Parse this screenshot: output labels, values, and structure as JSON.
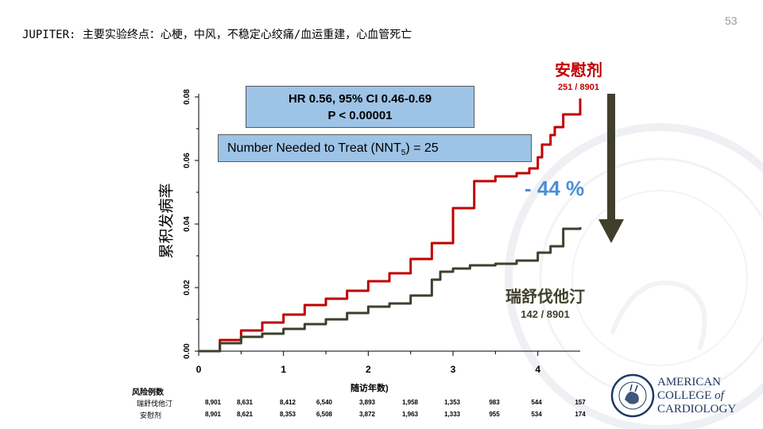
{
  "slide": {
    "title": "JUPITER:  主要实验终点：心梗，中风，不稳定心绞痛/血运重建，心血管死亡",
    "slide_number": "53"
  },
  "boxes": {
    "hr_line1": "HR 0.56, 95% CI 0.46-0.69",
    "hr_line2": "P < 0.00001",
    "nnt_prefix": "Number Needed to Treat (NNT",
    "nnt_sub": "5",
    "nnt_suffix": ") = 25"
  },
  "annotations": {
    "placebo_label": "安慰剂",
    "placebo_count": "251 / 8901",
    "statin_label": "瑞舒伐他汀",
    "statin_count": "142 / 8901",
    "reduction": "- 44 %"
  },
  "risk_table": {
    "title": "风险例数",
    "rows": [
      {
        "label": "瑞舒伐他汀",
        "values": [
          "8,901",
          "8,631",
          "8,412",
          "6,540",
          "3,893",
          "1,958",
          "1,353",
          "983",
          "544",
          "157"
        ]
      },
      {
        "label": "安慰剂",
        "values": [
          "8,901",
          "8,621",
          "8,353",
          "6,508",
          "3,872",
          "1,963",
          "1,333",
          "955",
          "534",
          "174"
        ]
      }
    ]
  },
  "logo": {
    "line1": "AMERICAN",
    "line2": "COLLEGE",
    "line2b": "of",
    "line3": "CARDIOLOGY",
    "seal_text": "AMERICAN COLLEGE OF CARDIOLOGY"
  },
  "colors": {
    "placebo": "#c00000",
    "statin": "#3f3f2c",
    "box_fill": "#9dc3e6",
    "reduction": "#4a8fd6",
    "arrow": "#3f3f2c"
  },
  "chart_data": {
    "type": "line",
    "title": "",
    "xlabel": "随访年数)",
    "ylabel": "累积发病率",
    "xlim": [
      0,
      4.5
    ],
    "ylim": [
      0,
      0.08
    ],
    "xticks": [
      "0",
      "1",
      "2",
      "3",
      "4"
    ],
    "yticks": [
      "0.00",
      "0.02",
      "0.04",
      "0.06",
      "0.08"
    ],
    "series": [
      {
        "name": "安慰剂",
        "color": "#c00000",
        "x": [
          0,
          0.25,
          0.5,
          0.75,
          1.0,
          1.25,
          1.5,
          1.75,
          2.0,
          2.25,
          2.5,
          2.75,
          3.0,
          3.25,
          3.5,
          3.75,
          3.9,
          4.0,
          4.05,
          4.15,
          4.2,
          4.3,
          4.45,
          4.5
        ],
        "y": [
          0,
          0.0035,
          0.0065,
          0.009,
          0.0115,
          0.0145,
          0.0165,
          0.019,
          0.022,
          0.0245,
          0.029,
          0.034,
          0.045,
          0.0535,
          0.055,
          0.056,
          0.0575,
          0.061,
          0.065,
          0.068,
          0.0705,
          0.0745,
          0.0745,
          0.0795
        ]
      },
      {
        "name": "瑞舒伐他汀",
        "color": "#3f3f2c",
        "x": [
          0,
          0.25,
          0.5,
          0.75,
          1.0,
          1.25,
          1.5,
          1.75,
          2.0,
          2.25,
          2.5,
          2.75,
          2.85,
          3.0,
          3.2,
          3.5,
          3.75,
          4.0,
          4.15,
          4.3,
          4.5
        ],
        "y": [
          0,
          0.0025,
          0.0045,
          0.0055,
          0.007,
          0.0085,
          0.01,
          0.012,
          0.014,
          0.015,
          0.0175,
          0.0225,
          0.025,
          0.026,
          0.027,
          0.0275,
          0.0285,
          0.031,
          0.033,
          0.0385,
          0.039
        ]
      }
    ]
  }
}
